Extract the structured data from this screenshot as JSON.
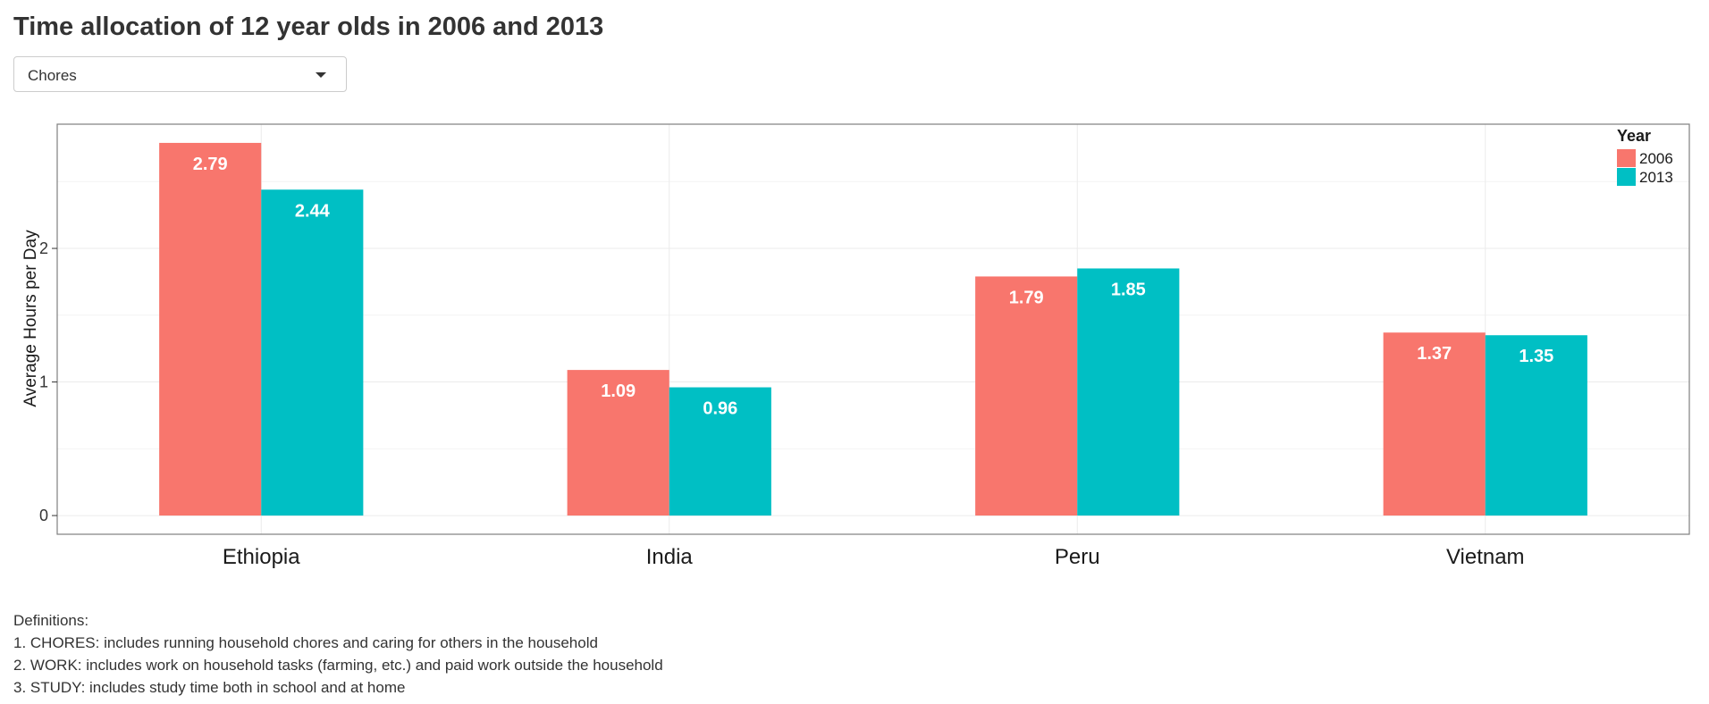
{
  "header": {
    "title": "Time allocation of 12 year olds in 2006 and 2013"
  },
  "selector": {
    "value": "Chores",
    "icon": "chevron-down-icon"
  },
  "definitions": {
    "heading": "Definitions:",
    "items": [
      "1. CHORES: includes running household chores and caring for others in the household",
      "2. WORK: includes work on household tasks (farming, etc.) and paid work outside the household",
      "3. STUDY: includes study time both in school and at home"
    ]
  },
  "chart_data": {
    "type": "bar",
    "categories": [
      "Ethiopia",
      "India",
      "Peru",
      "Vietnam"
    ],
    "series": [
      {
        "name": "2006",
        "values": [
          2.79,
          1.09,
          1.79,
          1.37
        ],
        "color": "#F8766D"
      },
      {
        "name": "2013",
        "values": [
          2.44,
          0.96,
          1.85,
          1.35
        ],
        "color": "#00BFC4"
      }
    ],
    "ylabel": "Average Hours per Day",
    "xlabel": "",
    "legend_title": "Year",
    "legend_position": "top-right",
    "ylim": [
      -0.14,
      2.93
    ],
    "yticks": [
      0,
      1,
      2
    ],
    "grid": true,
    "data_labels": [
      "2.79",
      "1.09",
      "1.79",
      "1.37",
      "2.44",
      "0.96",
      "1.85",
      "1.35"
    ]
  }
}
